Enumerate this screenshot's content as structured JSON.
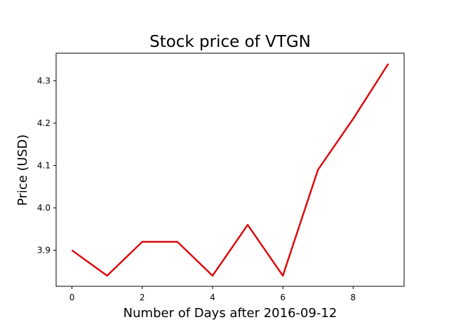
{
  "chart_data": {
    "type": "line",
    "title": "Stock price of VTGN",
    "xlabel": "Number of Days after 2016-09-12",
    "ylabel": "Price (USD)",
    "x": [
      0,
      1,
      2,
      3,
      4,
      5,
      6,
      7,
      8,
      9
    ],
    "series": [
      {
        "values": [
          3.9,
          3.84,
          3.92,
          3.92,
          3.84,
          3.96,
          3.84,
          4.09,
          4.21,
          4.34
        ],
        "color": "#dd0000"
      }
    ],
    "xlim": [
      -0.45,
      9.45
    ],
    "ylim": [
      3.815,
      4.365
    ],
    "x_ticks": [
      0,
      2,
      4,
      6,
      8
    ],
    "x_tick_labels": [
      "0",
      "2",
      "4",
      "6",
      "8"
    ],
    "y_ticks": [
      3.9,
      4.0,
      4.1,
      4.2,
      4.3
    ],
    "y_tick_labels": [
      "3.9",
      "4.0",
      "4.1",
      "4.2",
      "4.3"
    ],
    "grid": false,
    "legend": false
  }
}
